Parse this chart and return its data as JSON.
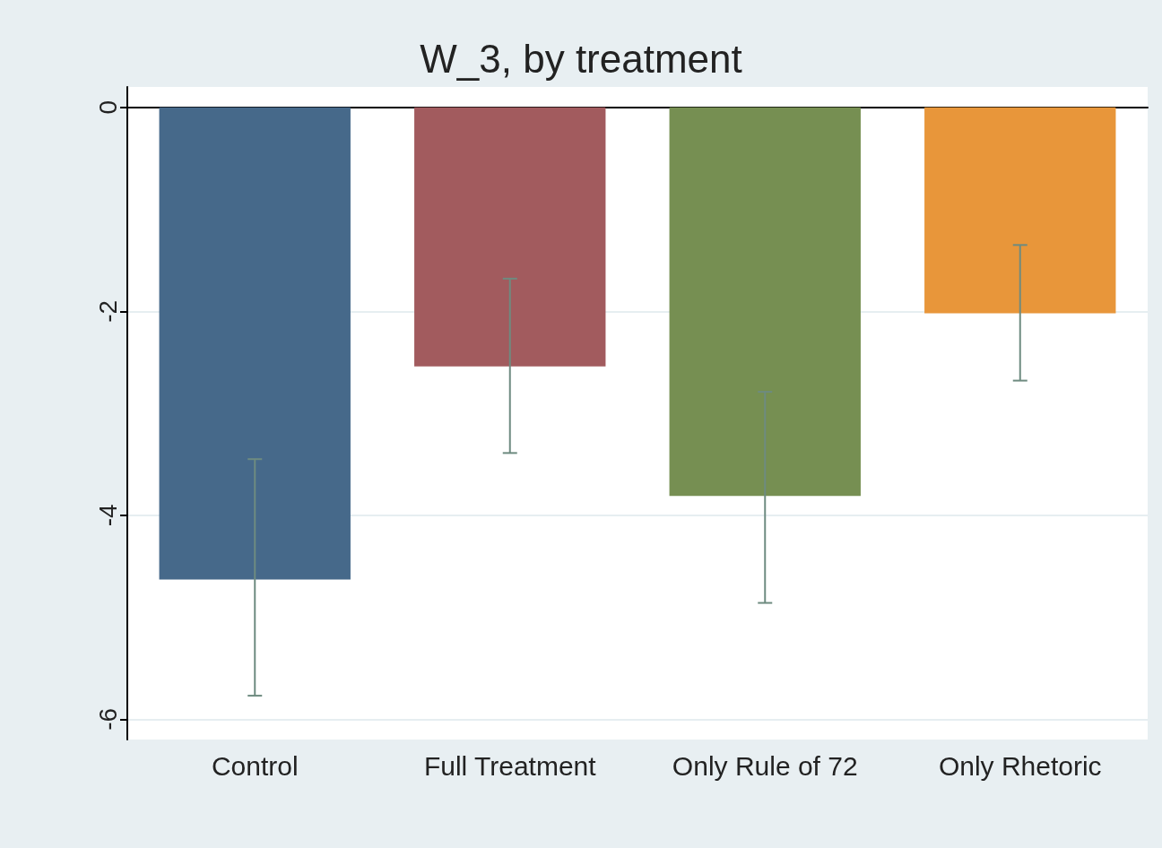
{
  "chart_data": {
    "type": "bar",
    "title": "W_3, by treatment",
    "categories": [
      "Control",
      "Full Treatment",
      "Only Rule of 72",
      "Only Rhetoric"
    ],
    "values": [
      -4.63,
      -2.54,
      -3.81,
      -2.02
    ],
    "colors": [
      "#46698a",
      "#a25b5e",
      "#768f52",
      "#e8963a"
    ],
    "errors": [
      [
        -5.77,
        -3.45
      ],
      [
        -3.39,
        -1.68
      ],
      [
        -4.86,
        -2.79
      ],
      [
        -2.68,
        -1.35
      ]
    ],
    "ylim": [
      -6.2,
      0.2
    ],
    "yticks": [
      0,
      -2,
      -4,
      -6
    ],
    "grid": "y"
  }
}
